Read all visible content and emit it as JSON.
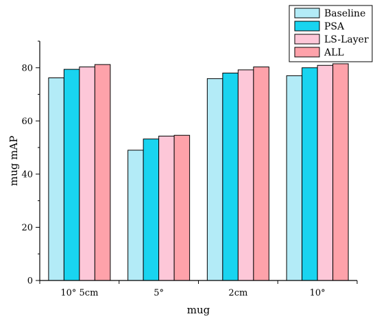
{
  "chart_data": {
    "type": "bar",
    "xlabel": "mug",
    "ylabel": "mug mAP",
    "categories": [
      "10° 5cm",
      "5°",
      "2cm",
      "10°"
    ],
    "ylim": [
      0,
      90
    ],
    "yticks": [
      0,
      20,
      40,
      60,
      80
    ],
    "grid": false,
    "legend_position": "top-right",
    "series": [
      {
        "name": "Baseline",
        "color": "#b3ebf7",
        "values": [
          76.2,
          49.0,
          75.9,
          77.0
        ]
      },
      {
        "name": "PSA",
        "color": "#19d4f0",
        "values": [
          79.4,
          53.2,
          78.0,
          80.0
        ]
      },
      {
        "name": "LS-Layer",
        "color": "#fdc7d8",
        "values": [
          80.3,
          54.3,
          79.2,
          80.9
        ]
      },
      {
        "name": "ALL",
        "color": "#fea2aa",
        "values": [
          81.2,
          54.6,
          80.3,
          81.5
        ]
      }
    ]
  }
}
